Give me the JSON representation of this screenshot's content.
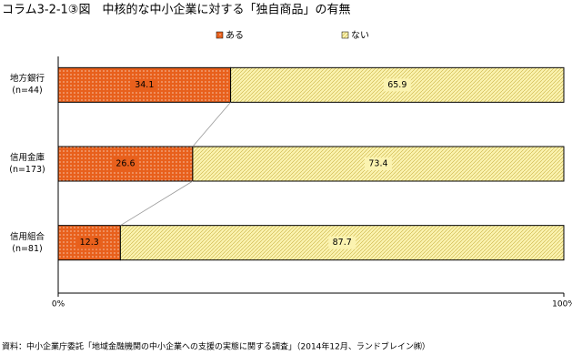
{
  "chart_data": {
    "type": "stacked-bar-horizontal",
    "title": "コラム3-2-1③図　中核的な中小企業に対する「独自商品」の有無",
    "categories": [
      "地方銀行\n(n=44)",
      "信用金庫\n(n=173)",
      "信用組合\n(n=81)"
    ],
    "series": [
      {
        "name": "ある",
        "color": "#e8601c",
        "values": [
          34.1,
          26.6,
          12.3
        ]
      },
      {
        "name": "ない",
        "color": "#fbf3b0",
        "values": [
          65.9,
          73.4,
          87.7
        ]
      }
    ],
    "xlim": [
      0,
      100
    ],
    "xticks": [
      {
        "value": 0,
        "label": "0%"
      },
      {
        "value": 100,
        "label": "100%"
      }
    ],
    "source": "資料：中小企業庁委託「地域金融機関の中小企業への支援の実態に関する調査」（2014年12月、ランドブレイン㈱）"
  }
}
